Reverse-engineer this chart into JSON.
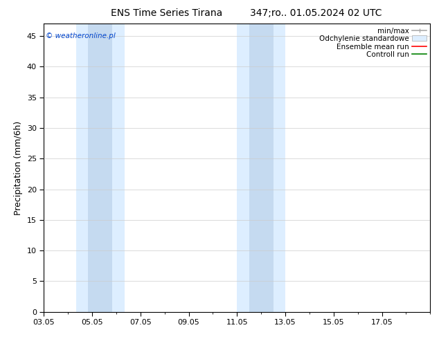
{
  "title_left": "ENS Time Series Tirana",
  "title_right": "347;ro.. 01.05.2024 02 UTC",
  "ylabel": "Precipitation (mm/6h)",
  "ylim": [
    0,
    47
  ],
  "yticks": [
    0,
    5,
    10,
    15,
    20,
    25,
    30,
    35,
    40,
    45
  ],
  "xstart": 0,
  "xend": 16,
  "xtick_labels": [
    "03.05",
    "05.05",
    "07.05",
    "09.05",
    "11.05",
    "13.05",
    "15.05",
    "17.05"
  ],
  "xtick_positions": [
    0,
    2,
    4,
    6,
    8,
    10,
    12,
    14
  ],
  "shade_regions_outer": [
    {
      "xmin": 1.33,
      "xmax": 3.33,
      "color": "#ddeeff"
    },
    {
      "xmin": 8.0,
      "xmax": 10.0,
      "color": "#ddeeff"
    }
  ],
  "shade_regions_inner": [
    {
      "xmin": 1.83,
      "xmax": 2.83,
      "color": "#c5daf0"
    },
    {
      "xmin": 8.5,
      "xmax": 9.5,
      "color": "#c5daf0"
    }
  ],
  "copyright_text": "© weatheronline.pl",
  "legend_items": [
    {
      "label": "min/max",
      "color": "#aaaaaa",
      "style": "line"
    },
    {
      "label": "Odchylenie standardowe",
      "color": "#ddeeff",
      "style": "rect"
    },
    {
      "label": "Ensemble mean run",
      "color": "red",
      "style": "line"
    },
    {
      "label": "Controll run",
      "color": "green",
      "style": "line"
    }
  ],
  "bg_color": "#ffffff",
  "plot_bg_color": "#ffffff",
  "grid_color": "#cccccc",
  "title_fontsize": 10,
  "axis_label_fontsize": 9,
  "tick_fontsize": 8,
  "legend_fontsize": 7.5
}
